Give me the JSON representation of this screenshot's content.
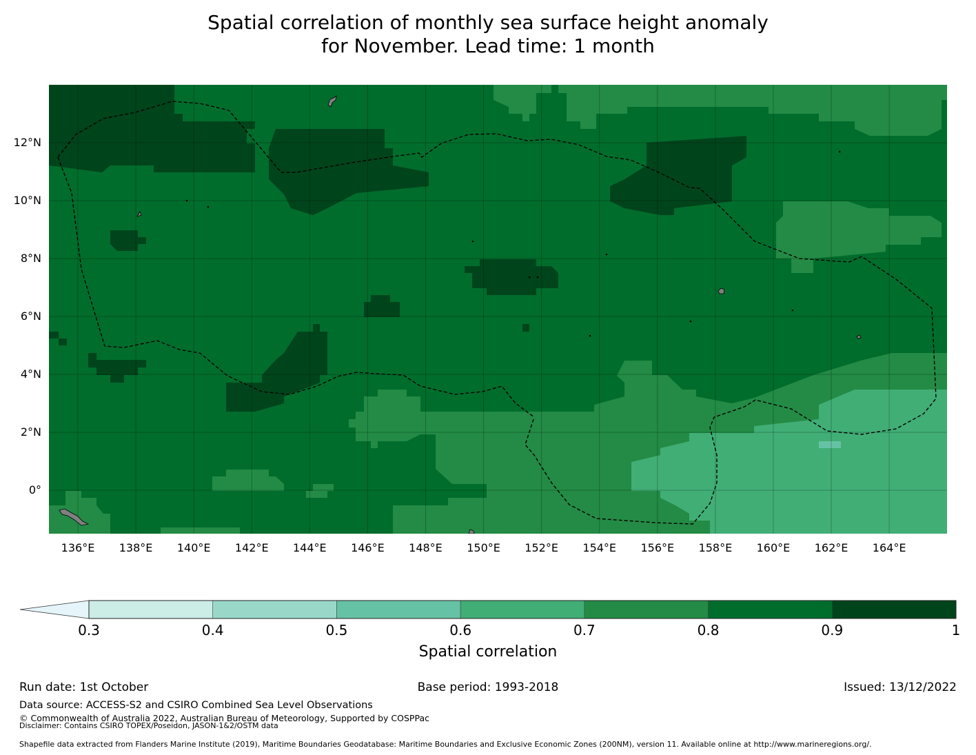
{
  "title": {
    "line1": "Spatial correlation of monthly sea surface height anomaly",
    "line2": "for November. Lead time: 1 month"
  },
  "map": {
    "lon_ticks": [
      "136°E",
      "138°E",
      "140°E",
      "142°E",
      "144°E",
      "146°E",
      "148°E",
      "150°E",
      "152°E",
      "154°E",
      "156°E",
      "158°E",
      "160°E",
      "162°E",
      "164°E"
    ],
    "lat_ticks": [
      "12°N",
      "10°N",
      "8°N",
      "6°N",
      "4°N",
      "2°N",
      "0°"
    ],
    "land_color": "#808080",
    "boundary_style": "dashed"
  },
  "colorbar": {
    "label": "Spatial correlation",
    "ticks": [
      "0.3",
      "0.4",
      "0.5",
      "0.6",
      "0.7",
      "0.8",
      "0.9",
      "1"
    ],
    "under_color": "#e5f5f9",
    "colors": [
      "#ccece6",
      "#99d8c9",
      "#66c2a4",
      "#41ae76",
      "#238b45",
      "#006d2c",
      "#00441b"
    ]
  },
  "footer": {
    "run_date": "Run date: 1st October",
    "base_period": "Base period: 1993-2018",
    "issued": "Issued: 13/12/2022",
    "data_source": "Data source: ACCESS-S2 and CSIRO Combined Sea Level Observations",
    "copyright": "© Commonwealth of Australia 2022, Australian Bureau of Meteorology, Supported by COSPPac",
    "disclaimer": "Disclaimer: Contains CSIRO TOPEX/Poseidon, JASON-1&2/OSTM data",
    "shapefile": "Shapefile data extracted from Flanders Marine Institute (2019), Maritime Boundaries Geodatabase: Maritime Boundaries and Exclusive Economic Zones (200NM), version 11. Available online at http://www.marineregions.org/."
  }
}
